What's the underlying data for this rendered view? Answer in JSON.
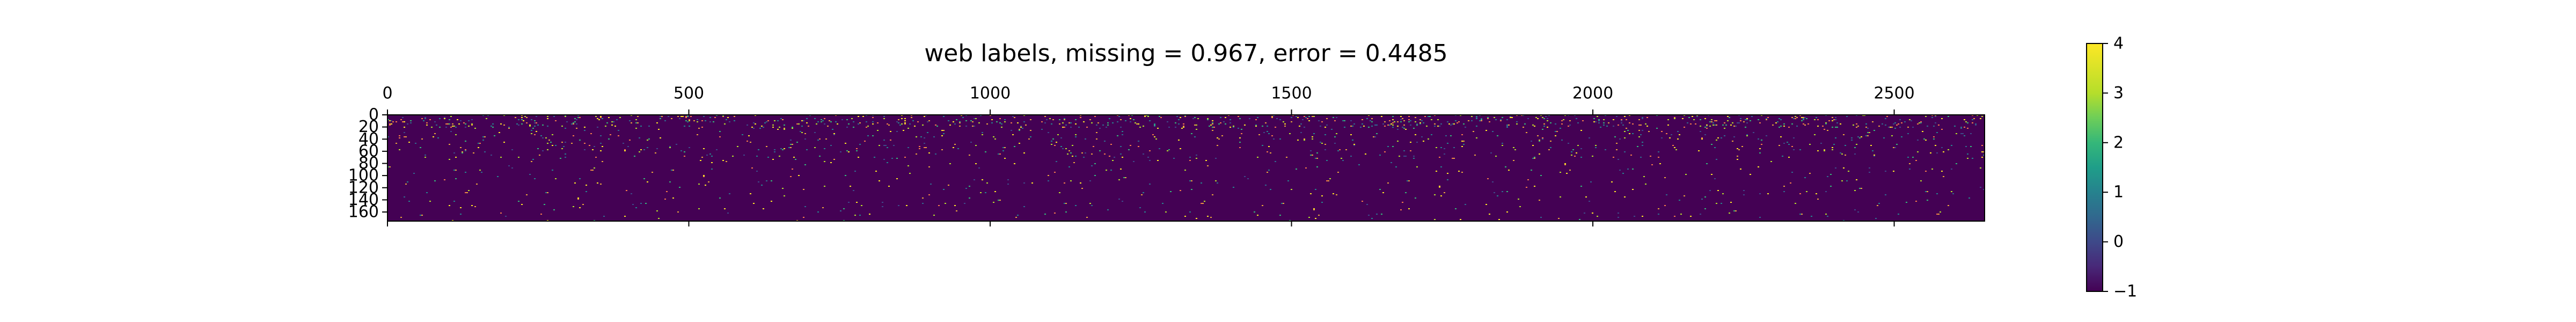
{
  "chart_data": {
    "type": "heatmap",
    "title": "web labels, missing = 0.967, error = 0.4485",
    "x_range": [
      0,
      2650
    ],
    "y_range": [
      0,
      175
    ],
    "x_ticks": [
      0,
      500,
      1000,
      1500,
      2000,
      2500
    ],
    "x_tick_labels": [
      "0",
      "500",
      "1000",
      "1500",
      "2000",
      "2500"
    ],
    "x_axis_position": "top",
    "y_ticks": [
      0,
      20,
      40,
      60,
      80,
      100,
      120,
      140,
      160
    ],
    "y_tick_labels": [
      "0",
      "20",
      "40",
      "60",
      "80",
      "100",
      "120",
      "140",
      "160"
    ],
    "y_inverted": true,
    "colormap": "viridis",
    "color_range": [
      -1,
      4
    ],
    "colorbar_ticks": [
      4,
      3,
      2,
      1,
      0,
      -1
    ],
    "colorbar_tick_labels": [
      "4",
      "3",
      "2",
      "1",
      "0",
      "−1"
    ],
    "colorbar_position": "right",
    "background_value": -1,
    "dominant_color": "#440154",
    "grid": false
  }
}
